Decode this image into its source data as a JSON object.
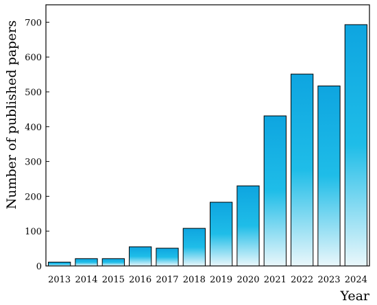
{
  "chart_data": {
    "type": "bar",
    "categories": [
      "2013",
      "2014",
      "2015",
      "2016",
      "2017",
      "2018",
      "2019",
      "2020",
      "2021",
      "2022",
      "2023",
      "2024"
    ],
    "values": [
      11,
      21,
      21,
      55,
      51,
      108,
      183,
      230,
      431,
      551,
      517,
      693
    ],
    "xlabel": "Year",
    "ylabel": "Number of published papers",
    "ylim": [
      0,
      750
    ],
    "yticks": [
      0,
      100,
      200,
      300,
      400,
      500,
      600,
      700
    ],
    "grid": false,
    "bar_gradient": {
      "top": "#0ea5e0",
      "mid": "#1fbde8",
      "bottom": "#eaf7fb"
    },
    "bar_stroke": "#000000"
  }
}
